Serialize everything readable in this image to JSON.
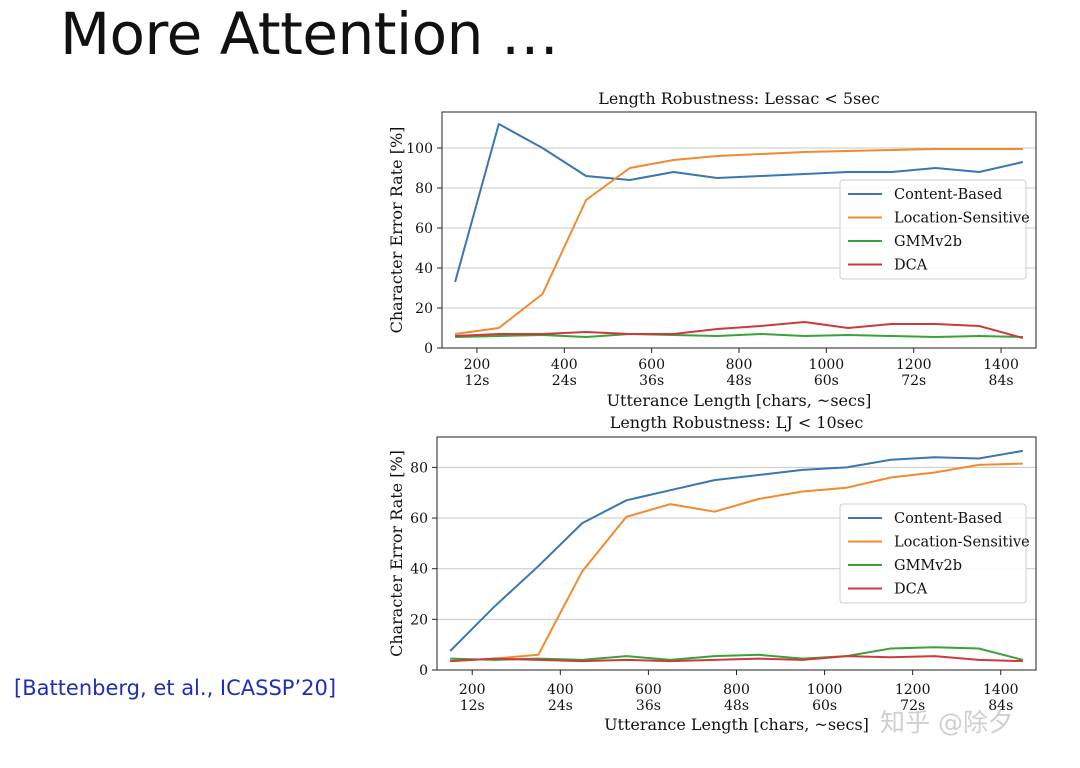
{
  "slide": {
    "title": "More Attention …",
    "citation": "[Battenberg, et al., ICASSP’20]",
    "watermark": "知乎 @除夕"
  },
  "colors": {
    "content_based": "#3a76b0",
    "location_sensitive": "#f28a30",
    "gmmv2b": "#3aa23a",
    "dca": "#cc3a3d",
    "grid": "#c8c8c8",
    "citation": "#1f2fb4"
  },
  "chart_data": [
    {
      "type": "line",
      "title": "Length Robustness: Lessac < 5sec",
      "xlabel": "Utterance Length [chars, ~secs]",
      "ylabel": "Character Error Rate [%]",
      "xlim": [
        120,
        1480
      ],
      "ylim": [
        0,
        118
      ],
      "xticks": [
        200,
        400,
        600,
        800,
        1000,
        1200,
        1400
      ],
      "xtick_labels": [
        "200",
        "400",
        "600",
        "800",
        "1000",
        "1200",
        "1400"
      ],
      "xtick_sublabels": [
        "12s",
        "24s",
        "36s",
        "48s",
        "60s",
        "72s",
        "84s"
      ],
      "yticks": [
        0,
        20,
        40,
        60,
        80,
        100
      ],
      "grid": "horizontal",
      "legend": "center-right",
      "x": [
        150,
        250,
        350,
        450,
        550,
        650,
        750,
        850,
        950,
        1050,
        1150,
        1250,
        1350,
        1450
      ],
      "series": [
        {
          "name": "Content-Based",
          "color": "#3a76b0",
          "values": [
            33,
            112,
            100,
            86,
            84,
            88,
            85,
            86,
            87,
            88,
            88,
            90,
            88,
            93
          ]
        },
        {
          "name": "Location-Sensitive",
          "color": "#f28a30",
          "values": [
            7,
            10,
            27,
            74,
            90,
            94,
            96,
            97,
            98,
            98.5,
            99,
            99.5,
            99.5,
            99.5
          ]
        },
        {
          "name": "GMMv2b",
          "color": "#3aa23a",
          "values": [
            5.5,
            6,
            6.5,
            5.5,
            7,
            6.5,
            6,
            7,
            6,
            6.5,
            6,
            5.5,
            6,
            5.5
          ]
        },
        {
          "name": "DCA",
          "color": "#cc3a3d",
          "values": [
            6,
            7,
            7,
            8,
            7,
            7,
            9.5,
            11,
            13,
            10,
            12,
            12,
            11,
            5
          ]
        }
      ]
    },
    {
      "type": "line",
      "title": "Length Robustness: LJ < 10sec",
      "xlabel": "Utterance Length [chars, ~secs]",
      "ylabel": "Character Error Rate [%]",
      "xlim": [
        120,
        1480
      ],
      "ylim": [
        0,
        92
      ],
      "xticks": [
        200,
        400,
        600,
        800,
        1000,
        1200,
        1400
      ],
      "xtick_labels": [
        "200",
        "400",
        "600",
        "800",
        "1000",
        "1200",
        "1400"
      ],
      "xtick_sublabels": [
        "12s",
        "24s",
        "36s",
        "48s",
        "60s",
        "72s",
        "84s"
      ],
      "yticks": [
        0,
        20,
        40,
        60,
        80
      ],
      "grid": "horizontal",
      "legend": "center-right",
      "x": [
        150,
        250,
        350,
        450,
        550,
        650,
        750,
        850,
        950,
        1050,
        1150,
        1250,
        1350,
        1450
      ],
      "series": [
        {
          "name": "Content-Based",
          "color": "#3a76b0",
          "values": [
            7.5,
            25,
            41,
            58,
            67,
            71,
            75,
            77,
            79,
            80,
            83,
            84,
            83.5,
            86.5
          ]
        },
        {
          "name": "Location-Sensitive",
          "color": "#f28a30",
          "values": [
            3.5,
            4.5,
            6,
            39,
            60.5,
            65.5,
            62.5,
            67.5,
            70.5,
            72,
            76,
            78,
            81,
            81.5
          ]
        },
        {
          "name": "GMMv2b",
          "color": "#3aa23a",
          "values": [
            4.5,
            4,
            4.5,
            4,
            5.5,
            4,
            5.5,
            6,
            4.5,
            5.5,
            8.5,
            9,
            8.5,
            4
          ]
        },
        {
          "name": "DCA",
          "color": "#cc3a3d",
          "values": [
            3.5,
            4.5,
            4,
            3.5,
            4,
            3.5,
            4,
            4.5,
            4,
            5.5,
            5,
            5.5,
            4,
            3.5
          ]
        }
      ]
    }
  ]
}
